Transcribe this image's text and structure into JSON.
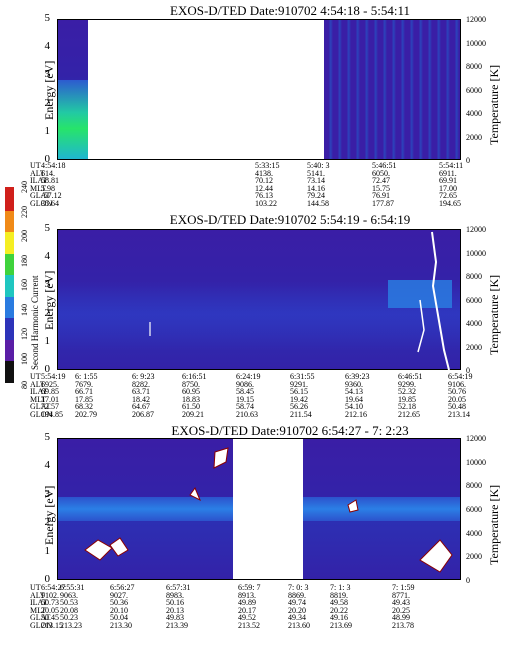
{
  "chart_data": [
    {
      "type": "heatmap",
      "title": "EXOS-D/TED    Date:910702   4:54:18 - 5:54:11",
      "ylabel": "Energy [eV]",
      "y2label": "Temperature [K]",
      "ylim": [
        0,
        5
      ],
      "y2lim": [
        0,
        12000
      ],
      "yticks": [
        "0",
        "1",
        "2",
        "3",
        "4",
        "5"
      ],
      "y2ticks": [
        "0",
        "2000",
        "4000",
        "6000",
        "8000",
        "10000",
        "12000"
      ],
      "row_labels": [
        "UT",
        "ALT",
        "ILAT",
        "MLT",
        "GLAT",
        "GLON"
      ],
      "columns": [
        [
          "4:54:18",
          "614.",
          "58.81",
          "5.98",
          "-57.12",
          "35.64"
        ],
        [
          "5:33:15",
          "4138.",
          "70.12",
          "12.44",
          "76.13",
          "103.22"
        ],
        [
          "5:40: 3",
          "5141.",
          "73.14",
          "14.16",
          "79.24",
          "144.58"
        ],
        [
          "5:46:51",
          "6050.",
          "72.47",
          "15.75",
          "76.91",
          "177.87"
        ],
        [
          "5:54:11",
          "6911.",
          "69.91",
          "17.00",
          "72.65",
          "194.65"
        ]
      ]
    },
    {
      "type": "heatmap",
      "title": "EXOS-D/TED    Date:910702   5:54:19 - 6:54:19",
      "ylabel": "Energy [eV]",
      "y2label": "Temperature [K]",
      "ylim": [
        0,
        5
      ],
      "y2lim": [
        0,
        12000
      ],
      "yticks": [
        "0",
        "1",
        "2",
        "3",
        "4",
        "5"
      ],
      "y2ticks": [
        "0",
        "2000",
        "4000",
        "6000",
        "8000",
        "10000",
        "12000"
      ],
      "row_labels": [
        "UT",
        "ALT",
        "ILAT",
        "MLT",
        "GLAT",
        "GLON"
      ],
      "columns": [
        [
          "5:54:19",
          "6925.",
          "69.85",
          "17.01",
          "72.57",
          "194.85"
        ],
        [
          "6: 1:55",
          "7679.",
          "66.71",
          "17.85",
          "68.32",
          "202.79"
        ],
        [
          "6: 9:23",
          "8282.",
          "63.71",
          "18.42",
          "64.67",
          "206.87"
        ],
        [
          "6:16:51",
          "8750.",
          "60.95",
          "18.83",
          "61.50",
          "209.21"
        ],
        [
          "6:24:19",
          "9086.",
          "58.45",
          "19.15",
          "58.74",
          "210.63"
        ],
        [
          "6:31:55",
          "9291.",
          "56.15",
          "19.42",
          "56.26",
          "211.54"
        ],
        [
          "6:39:23",
          "9360.",
          "54.13",
          "19.64",
          "54.10",
          "212.16"
        ],
        [
          "6:46:51",
          "9299.",
          "52.32",
          "19.85",
          "52.18",
          "212.65"
        ],
        [
          "6:54:19",
          "9106.",
          "50.76",
          "20.05",
          "50.48",
          "213.14"
        ]
      ],
      "colorbar": {
        "label": "Second Harmonic Current",
        "ticks": [
          "80",
          "100",
          "120",
          "140",
          "160",
          "180",
          "200",
          "220",
          "240"
        ]
      }
    },
    {
      "type": "heatmap",
      "title": "EXOS-D/TED    Date:910702   6:54:27 - 7: 2:23",
      "ylabel": "Energy [eV]",
      "y2label": "Temperature [K]",
      "ylim": [
        0,
        5
      ],
      "y2lim": [
        0,
        12000
      ],
      "yticks": [
        "0",
        "1",
        "2",
        "3",
        "4",
        "5"
      ],
      "y2ticks": [
        "0",
        "2000",
        "4000",
        "6000",
        "8000",
        "10000",
        "12000"
      ],
      "row_labels": [
        "UT",
        "ALT",
        "ILAT",
        "MLT",
        "GLAT",
        "GLON"
      ],
      "columns": [
        [
          "6:54:27",
          "9102.",
          "50.73",
          "20.05",
          "50.45",
          "213.15"
        ],
        [
          "6:55:31",
          "9063.",
          "50.53",
          "20.08",
          "50.23",
          "213.23"
        ],
        [
          "6:56:27",
          "9027.",
          "50.36",
          "20.10",
          "50.04",
          "213.30"
        ],
        [
          "6:57:31",
          "8983.",
          "50.16",
          "20.13",
          "49.83",
          "213.39"
        ],
        [
          "6:59: 7",
          "8913.",
          "49.89",
          "20.17",
          "49.52",
          "213.52"
        ],
        [
          "7: 0: 3",
          "8869.",
          "49.74",
          "20.20",
          "49.34",
          "213.60"
        ],
        [
          "7: 1: 3",
          "8819.",
          "49.58",
          "20.22",
          "49.16",
          "213.69"
        ],
        [
          "7: 1:59",
          "8771.",
          "49.43",
          "20.25",
          "48.99",
          "213.78"
        ]
      ]
    }
  ]
}
